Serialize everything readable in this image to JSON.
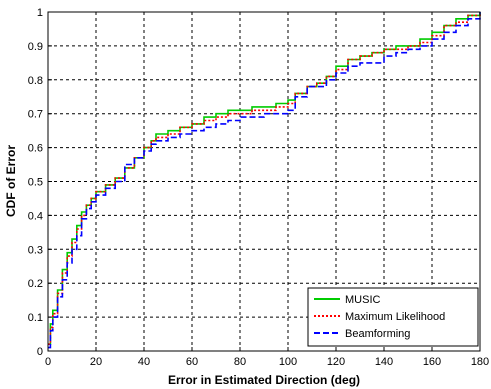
{
  "chart_data": {
    "type": "line",
    "xlabel": "Error in Estimated Direction (deg)",
    "ylabel": "CDF of Error",
    "xlim": [
      0,
      180
    ],
    "ylim": [
      0,
      1
    ],
    "x_ticks": [
      0,
      20,
      40,
      60,
      80,
      100,
      120,
      140,
      160,
      180
    ],
    "y_ticks": [
      0,
      0.1,
      0.2,
      0.3,
      0.4,
      0.5,
      0.6,
      0.7,
      0.8,
      0.9,
      1
    ],
    "grid": true,
    "legend_position": "bottom-right",
    "series": [
      {
        "name": "MUSIC",
        "color": "#00cc00",
        "dash": "solid",
        "points": [
          [
            0,
            0.02
          ],
          [
            1,
            0.08
          ],
          [
            2,
            0.12
          ],
          [
            4,
            0.18
          ],
          [
            6,
            0.24
          ],
          [
            8,
            0.29
          ],
          [
            10,
            0.33
          ],
          [
            12,
            0.37
          ],
          [
            14,
            0.41
          ],
          [
            16,
            0.43
          ],
          [
            18,
            0.45
          ],
          [
            20,
            0.47
          ],
          [
            24,
            0.49
          ],
          [
            28,
            0.51
          ],
          [
            32,
            0.54
          ],
          [
            36,
            0.57
          ],
          [
            40,
            0.6
          ],
          [
            43,
            0.62
          ],
          [
            45,
            0.64
          ],
          [
            50,
            0.65
          ],
          [
            55,
            0.66
          ],
          [
            60,
            0.67
          ],
          [
            65,
            0.69
          ],
          [
            70,
            0.7
          ],
          [
            75,
            0.71
          ],
          [
            80,
            0.71
          ],
          [
            85,
            0.72
          ],
          [
            90,
            0.72
          ],
          [
            95,
            0.73
          ],
          [
            100,
            0.74
          ],
          [
            103,
            0.76
          ],
          [
            108,
            0.78
          ],
          [
            112,
            0.79
          ],
          [
            116,
            0.81
          ],
          [
            120,
            0.84
          ],
          [
            125,
            0.86
          ],
          [
            130,
            0.87
          ],
          [
            135,
            0.88
          ],
          [
            140,
            0.89
          ],
          [
            145,
            0.9
          ],
          [
            150,
            0.9
          ],
          [
            155,
            0.92
          ],
          [
            160,
            0.94
          ],
          [
            165,
            0.96
          ],
          [
            170,
            0.98
          ],
          [
            175,
            0.99
          ],
          [
            180,
            1.0
          ]
        ]
      },
      {
        "name": "Maximum Likelihood",
        "color": "#ff0000",
        "dash": "dotted",
        "points": [
          [
            0,
            0.02
          ],
          [
            1,
            0.07
          ],
          [
            2,
            0.11
          ],
          [
            4,
            0.17
          ],
          [
            6,
            0.23
          ],
          [
            8,
            0.28
          ],
          [
            10,
            0.32
          ],
          [
            12,
            0.36
          ],
          [
            14,
            0.4
          ],
          [
            16,
            0.43
          ],
          [
            18,
            0.45
          ],
          [
            20,
            0.47
          ],
          [
            24,
            0.49
          ],
          [
            28,
            0.51
          ],
          [
            32,
            0.54
          ],
          [
            36,
            0.57
          ],
          [
            40,
            0.6
          ],
          [
            43,
            0.62
          ],
          [
            45,
            0.63
          ],
          [
            50,
            0.64
          ],
          [
            55,
            0.66
          ],
          [
            60,
            0.67
          ],
          [
            65,
            0.68
          ],
          [
            70,
            0.69
          ],
          [
            75,
            0.7
          ],
          [
            80,
            0.7
          ],
          [
            85,
            0.71
          ],
          [
            90,
            0.71
          ],
          [
            95,
            0.72
          ],
          [
            100,
            0.73
          ],
          [
            103,
            0.76
          ],
          [
            108,
            0.78
          ],
          [
            112,
            0.79
          ],
          [
            116,
            0.81
          ],
          [
            120,
            0.83
          ],
          [
            125,
            0.86
          ],
          [
            130,
            0.87
          ],
          [
            135,
            0.88
          ],
          [
            140,
            0.89
          ],
          [
            145,
            0.89
          ],
          [
            150,
            0.9
          ],
          [
            155,
            0.91
          ],
          [
            160,
            0.93
          ],
          [
            165,
            0.96
          ],
          [
            170,
            0.97
          ],
          [
            175,
            0.99
          ],
          [
            180,
            1.0
          ]
        ]
      },
      {
        "name": "Beamforming",
        "color": "#0000ff",
        "dash": "dashed",
        "points": [
          [
            0,
            0.01
          ],
          [
            1,
            0.06
          ],
          [
            2,
            0.1
          ],
          [
            4,
            0.16
          ],
          [
            6,
            0.21
          ],
          [
            8,
            0.26
          ],
          [
            10,
            0.3
          ],
          [
            12,
            0.34
          ],
          [
            14,
            0.39
          ],
          [
            16,
            0.42
          ],
          [
            18,
            0.44
          ],
          [
            20,
            0.46
          ],
          [
            24,
            0.48
          ],
          [
            28,
            0.5
          ],
          [
            32,
            0.55
          ],
          [
            36,
            0.57
          ],
          [
            40,
            0.59
          ],
          [
            43,
            0.61
          ],
          [
            45,
            0.62
          ],
          [
            50,
            0.63
          ],
          [
            55,
            0.64
          ],
          [
            60,
            0.65
          ],
          [
            65,
            0.66
          ],
          [
            70,
            0.67
          ],
          [
            75,
            0.68
          ],
          [
            80,
            0.69
          ],
          [
            85,
            0.69
          ],
          [
            90,
            0.7
          ],
          [
            95,
            0.7
          ],
          [
            100,
            0.71
          ],
          [
            103,
            0.75
          ],
          [
            108,
            0.78
          ],
          [
            112,
            0.78
          ],
          [
            116,
            0.8
          ],
          [
            120,
            0.82
          ],
          [
            125,
            0.84
          ],
          [
            130,
            0.85
          ],
          [
            135,
            0.85
          ],
          [
            140,
            0.87
          ],
          [
            145,
            0.88
          ],
          [
            150,
            0.89
          ],
          [
            155,
            0.9
          ],
          [
            160,
            0.92
          ],
          [
            165,
            0.94
          ],
          [
            170,
            0.96
          ],
          [
            175,
            0.98
          ],
          [
            180,
            1.0
          ]
        ]
      }
    ]
  }
}
